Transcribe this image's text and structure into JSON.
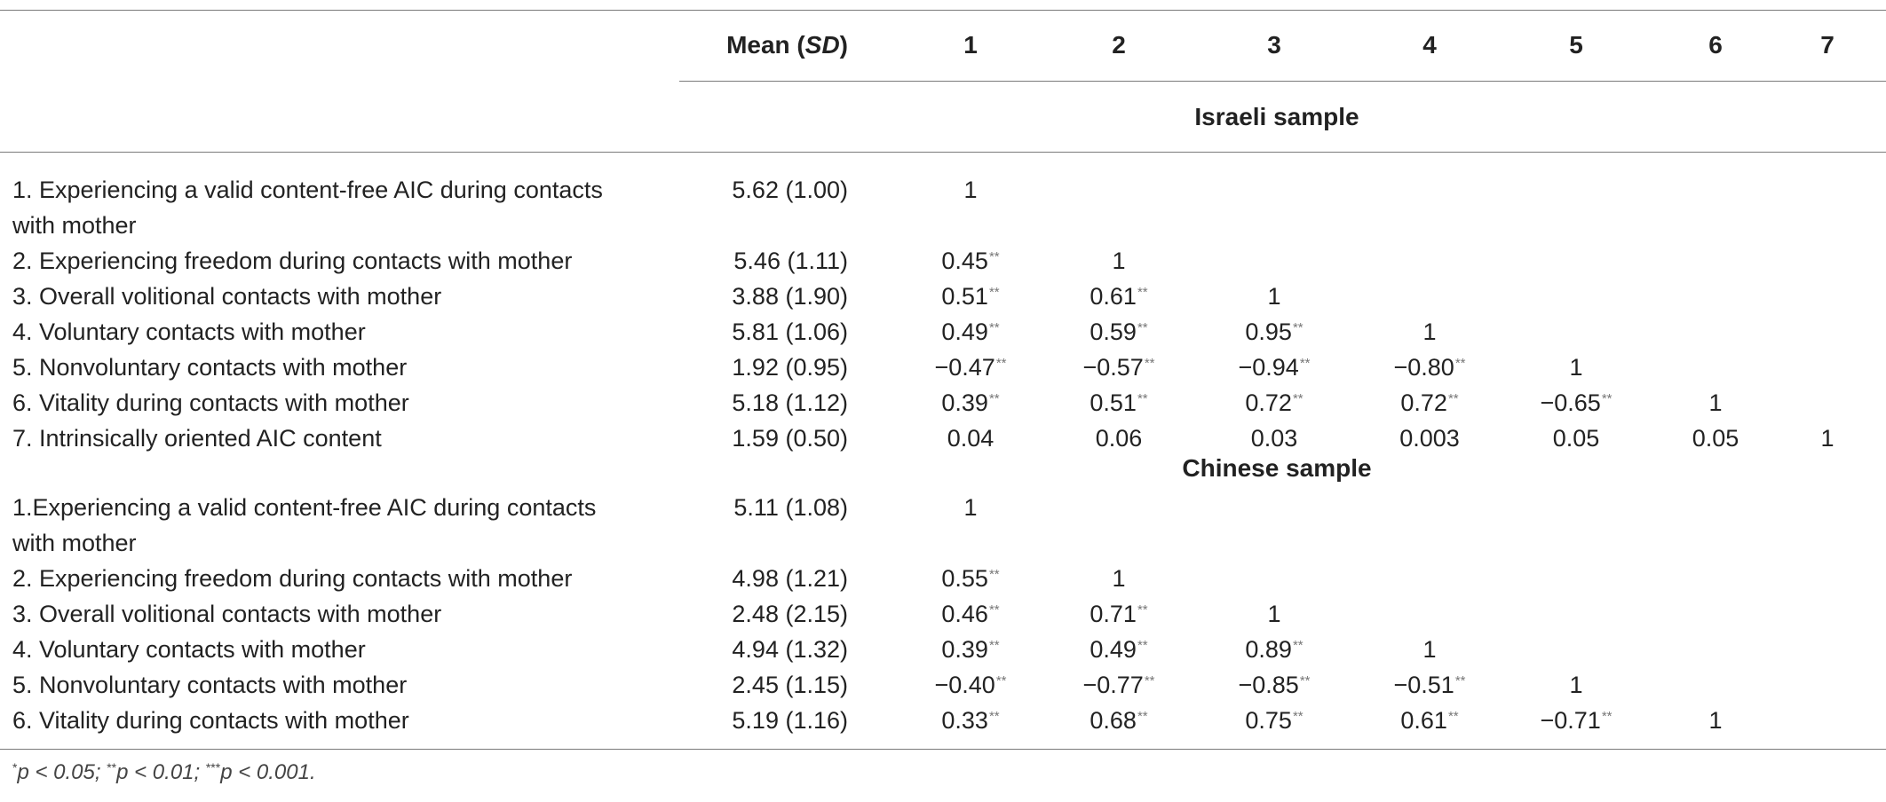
{
  "header": {
    "mean_label": "Mean (",
    "sd_label": "SD",
    "mean_close": ")",
    "columns": [
      "1",
      "2",
      "3",
      "4",
      "5",
      "6",
      "7"
    ]
  },
  "samples": [
    {
      "title": "Israeli sample",
      "rows": [
        {
          "label": [
            "1. Experiencing a valid content-free AIC during contacts",
            "with mother"
          ],
          "mean": "5.62 (1.00)",
          "cells": [
            [
              "1",
              ""
            ]
          ]
        },
        {
          "label": [
            "2. Experiencing freedom during contacts with mother"
          ],
          "mean": "5.46 (1.11)",
          "cells": [
            [
              "0.45",
              "**"
            ],
            [
              "1",
              ""
            ]
          ]
        },
        {
          "label": [
            "3. Overall volitional contacts with mother"
          ],
          "mean": "3.88 (1.90)",
          "cells": [
            [
              "0.51",
              "**"
            ],
            [
              "0.61",
              "**"
            ],
            [
              "1",
              ""
            ]
          ]
        },
        {
          "label": [
            "4. Voluntary contacts with mother"
          ],
          "mean": "5.81 (1.06)",
          "cells": [
            [
              "0.49",
              "**"
            ],
            [
              "0.59",
              "**"
            ],
            [
              "0.95",
              "**"
            ],
            [
              "1",
              ""
            ]
          ]
        },
        {
          "label": [
            "5. Nonvoluntary contacts with mother"
          ],
          "mean": "1.92 (0.95)",
          "cells": [
            [
              "−0.47",
              "**"
            ],
            [
              "−0.57",
              "**"
            ],
            [
              "−0.94",
              "**"
            ],
            [
              "−0.80",
              "**"
            ],
            [
              "1",
              ""
            ]
          ]
        },
        {
          "label": [
            "6. Vitality during contacts with mother"
          ],
          "mean": "5.18 (1.12)",
          "cells": [
            [
              "0.39",
              "**"
            ],
            [
              "0.51",
              "**"
            ],
            [
              "0.72",
              "**"
            ],
            [
              "0.72",
              "**"
            ],
            [
              "−0.65",
              "**"
            ],
            [
              "1",
              ""
            ]
          ]
        },
        {
          "label": [
            "7. Intrinsically oriented AIC content"
          ],
          "mean": "1.59 (0.50)",
          "cells": [
            [
              "0.04",
              ""
            ],
            [
              "0.06",
              ""
            ],
            [
              "0.03",
              ""
            ],
            [
              "0.003",
              ""
            ],
            [
              "0.05",
              ""
            ],
            [
              "0.05",
              ""
            ],
            [
              "1",
              ""
            ]
          ]
        }
      ]
    },
    {
      "title": "Chinese sample",
      "rows": [
        {
          "label": [
            "1.Experiencing a valid content-free AIC during contacts",
            "with mother"
          ],
          "mean": "5.11 (1.08)",
          "cells": [
            [
              "1",
              ""
            ]
          ]
        },
        {
          "label": [
            "2. Experiencing freedom during contacts with mother"
          ],
          "mean": "4.98 (1.21)",
          "cells": [
            [
              "0.55",
              "**"
            ],
            [
              "1",
              ""
            ]
          ]
        },
        {
          "label": [
            "3. Overall volitional contacts with mother"
          ],
          "mean": "2.48 (2.15)",
          "cells": [
            [
              "0.46",
              "**"
            ],
            [
              "0.71",
              "**"
            ],
            [
              "1",
              ""
            ]
          ]
        },
        {
          "label": [
            "4. Voluntary contacts with mother"
          ],
          "mean": "4.94 (1.32)",
          "cells": [
            [
              "0.39",
              "**"
            ],
            [
              "0.49",
              "**"
            ],
            [
              "0.89",
              "**"
            ],
            [
              "1",
              ""
            ]
          ]
        },
        {
          "label": [
            "5. Nonvoluntary contacts with mother"
          ],
          "mean": "2.45 (1.15)",
          "cells": [
            [
              "−0.40",
              "**"
            ],
            [
              "−0.77",
              "**"
            ],
            [
              "−0.85",
              "**"
            ],
            [
              "−0.51",
              "**"
            ],
            [
              "1",
              ""
            ]
          ]
        },
        {
          "label": [
            "6. Vitality during contacts with mother"
          ],
          "mean": "5.19 (1.16)",
          "cells": [
            [
              "0.33",
              "**"
            ],
            [
              "0.68",
              "**"
            ],
            [
              "0.75",
              "**"
            ],
            [
              "0.61",
              "**"
            ],
            [
              "−0.71",
              "**"
            ],
            [
              "1",
              ""
            ]
          ]
        }
      ]
    }
  ],
  "footnote": [
    {
      "sup": "*",
      "text": "p < 0.05; "
    },
    {
      "sup": "**",
      "text": "p < 0.01; "
    },
    {
      "sup": "***",
      "text": "p < 0.001."
    }
  ]
}
